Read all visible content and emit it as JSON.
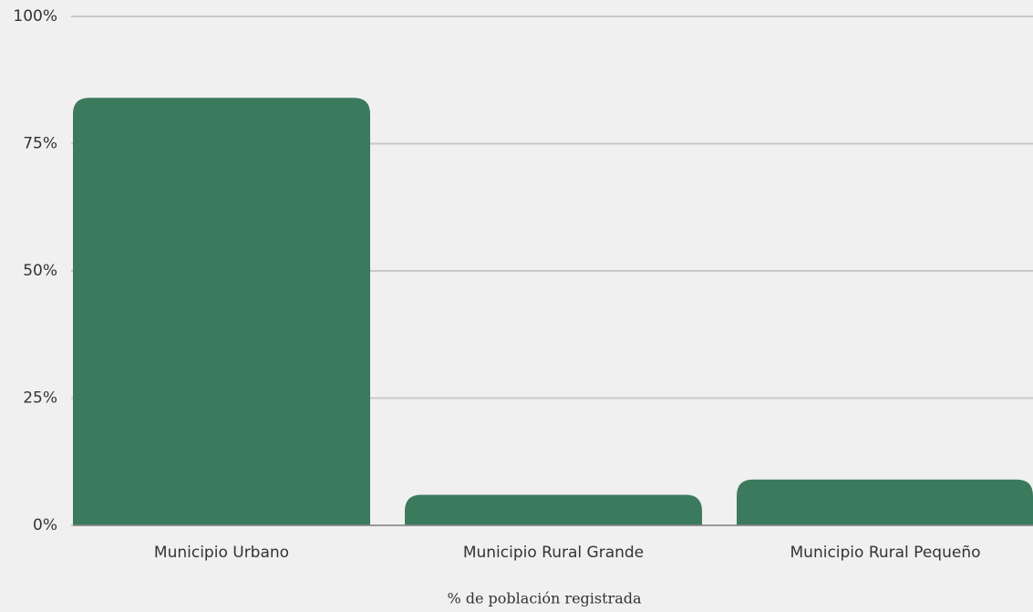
{
  "chart_data": {
    "type": "bar",
    "x_label": "% de población registrada",
    "categories": [
      "Municipio Urbano",
      "Municipio Rural Grande",
      "Municipio Rural Pequeño"
    ],
    "values": [
      84,
      6,
      9
    ],
    "color": "#3c7a5e",
    "ylim": [
      0,
      100
    ],
    "yticks": [
      {
        "value": 0,
        "label": "0%"
      },
      {
        "value": 25,
        "label": "25%"
      },
      {
        "value": 50,
        "label": "50%"
      },
      {
        "value": 75,
        "label": "75%"
      },
      {
        "value": 100,
        "label": "100%"
      }
    ],
    "grid": true
  }
}
